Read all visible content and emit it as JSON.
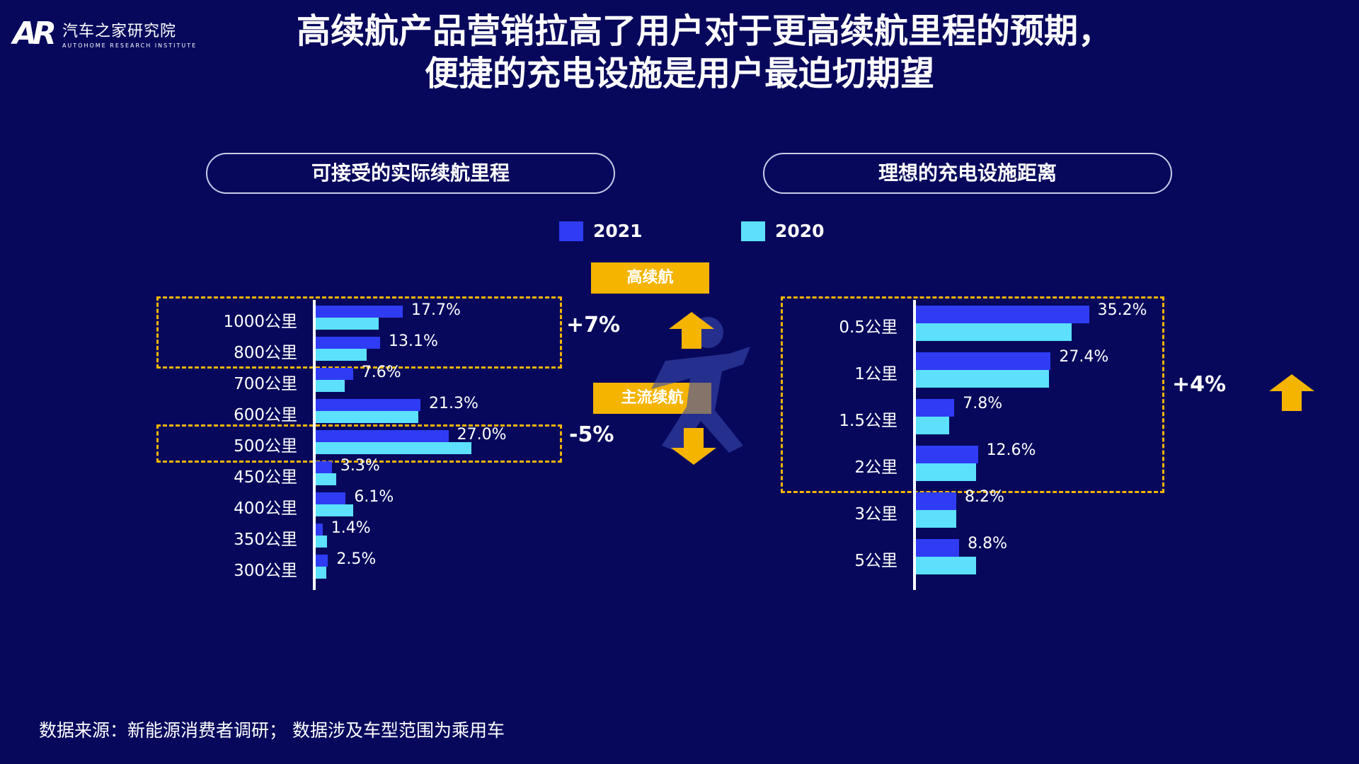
{
  "logo": {
    "mark": "AR",
    "cn": "汽车之家研究院",
    "en": "AUTOHOME RESEARCH INSTITUTE"
  },
  "title": {
    "line1": "高续航产品营销拉高了用户对于更高续航里程的预期，",
    "line2": "便捷的充电设施是用户最迫切期望"
  },
  "legend": [
    {
      "label": "2021",
      "color": "#2f3cf4"
    },
    {
      "label": "2020",
      "color": "#5ce0fb"
    }
  ],
  "annotations": {
    "high_range_tag": "高续航",
    "main_range_tag": "主流续航",
    "left_up": "+7%",
    "left_down": "-5%",
    "right_up": "+4%"
  },
  "source": "数据来源：新能源消费者调研；  数据涉及车型范围为乘用车",
  "chart_data": [
    {
      "type": "bar",
      "title": "可接受的实际续航里程",
      "orientation": "horizontal",
      "categories": [
        "1000公里",
        "800公里",
        "700公里",
        "600公里",
        "500公里",
        "450公里",
        "400公里",
        "350公里",
        "300公里"
      ],
      "series": [
        {
          "name": "2021",
          "values": [
            17.7,
            13.1,
            7.6,
            21.3,
            27.0,
            3.3,
            6.1,
            1.4,
            2.5
          ]
        },
        {
          "name": "2020",
          "values": [
            12.8,
            10.4,
            5.9,
            20.9,
            31.6,
            4.2,
            7.6,
            2.3,
            2.2
          ]
        }
      ],
      "labels": [
        "17.7%",
        "13.1%",
        "7.6%",
        "21.3%",
        "27.0%",
        "3.3%",
        "6.1%",
        "1.4%",
        "2.5%"
      ],
      "xlim": [
        0,
        45
      ]
    },
    {
      "type": "bar",
      "title": "理想的充电设施距离",
      "orientation": "horizontal",
      "categories": [
        "0.5公里",
        "1公里",
        "1.5公里",
        "2公里",
        "3公里",
        "5公里"
      ],
      "series": [
        {
          "name": "2021",
          "values": [
            35.2,
            27.4,
            7.8,
            12.6,
            8.2,
            8.8
          ]
        },
        {
          "name": "2020",
          "values": [
            31.6,
            27.0,
            6.7,
            12.3,
            8.2,
            12.3
          ]
        }
      ],
      "labels": [
        "35.2%",
        "27.4%",
        "7.8%",
        "12.6%",
        "8.2%",
        "8.8%"
      ],
      "xlim": [
        0,
        45
      ]
    }
  ]
}
